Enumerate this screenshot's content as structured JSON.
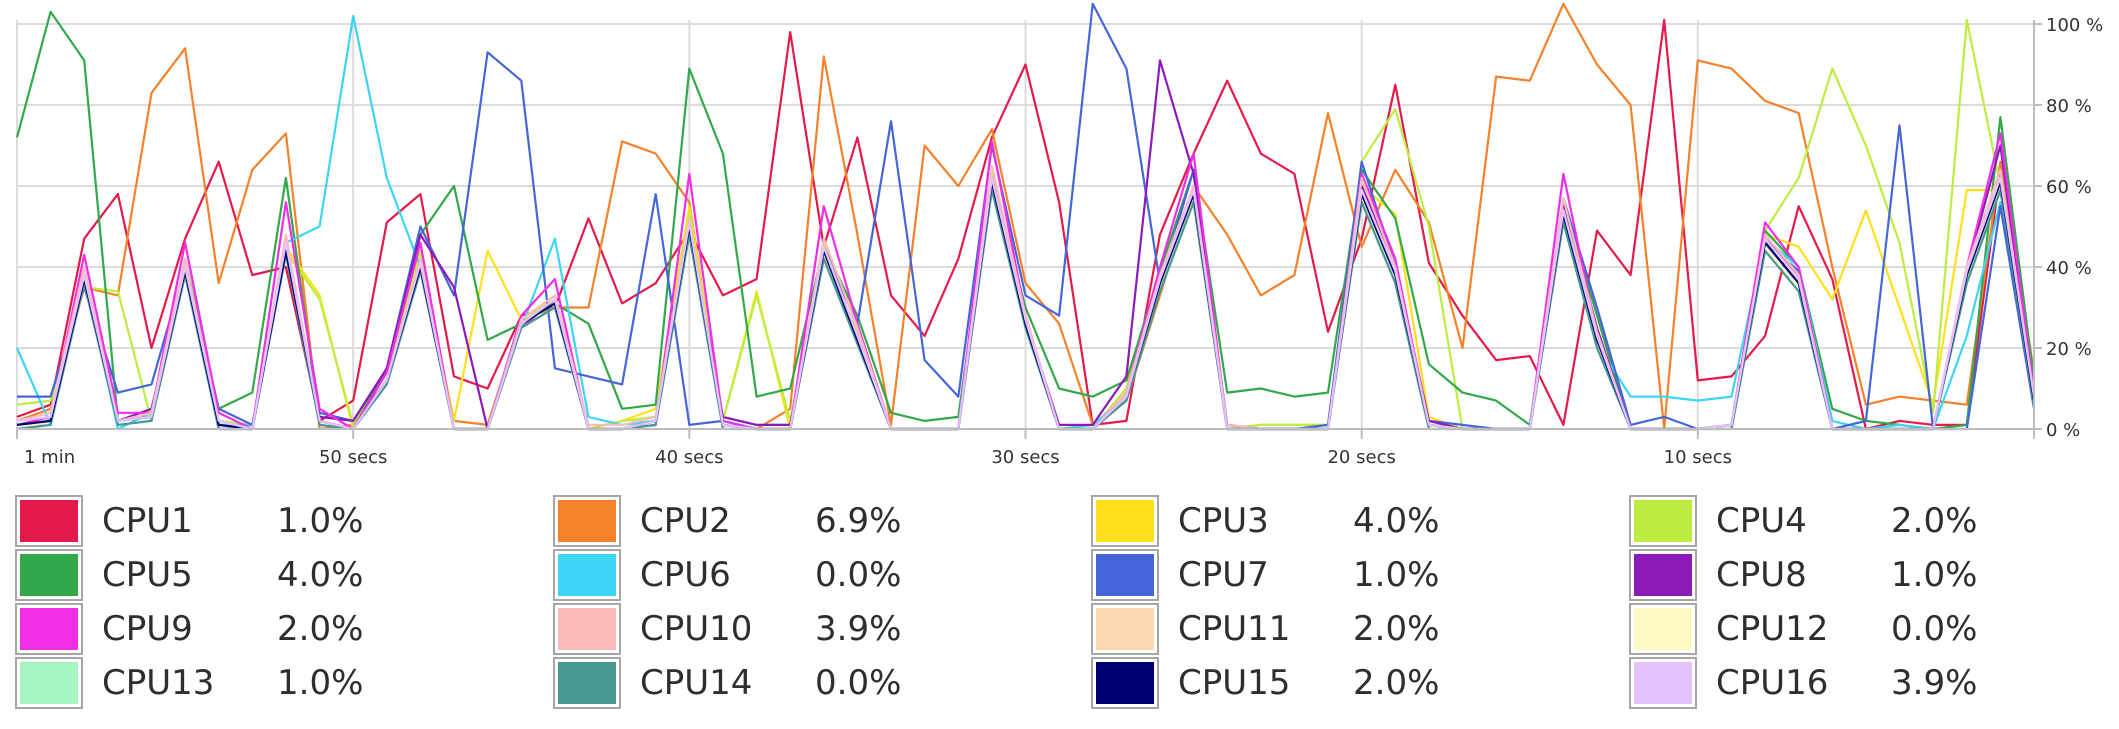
{
  "chart_data": {
    "type": "line",
    "x_unit": "seconds ago",
    "x": [
      60,
      59,
      58,
      57,
      56,
      55,
      54,
      53,
      52,
      51,
      50,
      49,
      48,
      47,
      46,
      45,
      44,
      43,
      42,
      41,
      40,
      39,
      38,
      37,
      36,
      35,
      34,
      33,
      32,
      31,
      30,
      29,
      28,
      27,
      26,
      25,
      24,
      23,
      22,
      21,
      20,
      19,
      18,
      17,
      16,
      15,
      14,
      13,
      12,
      11,
      10,
      9,
      8,
      7,
      6,
      5,
      4,
      3,
      2,
      1,
      0
    ],
    "ylim": [
      0,
      100
    ],
    "xlim": [
      60,
      0
    ],
    "x_tick_labels": [
      {
        "x": 60,
        "label": "1 min"
      },
      {
        "x": 50,
        "label": "50 secs"
      },
      {
        "x": 40,
        "label": "40 secs"
      },
      {
        "x": 30,
        "label": "30 secs"
      },
      {
        "x": 20,
        "label": "20 secs"
      },
      {
        "x": 10,
        "label": "10 secs"
      }
    ],
    "y_tick_labels": [
      {
        "y": 100,
        "label": "100 %"
      },
      {
        "y": 80,
        "label": "80 %"
      },
      {
        "y": 60,
        "label": "60 %"
      },
      {
        "y": 40,
        "label": "40 %"
      },
      {
        "y": 20,
        "label": "20 %"
      },
      {
        "y": 0,
        "label": "0 %"
      }
    ],
    "grid": true,
    "legend_position": "bottom",
    "series": [
      {
        "name": "CPU1",
        "value_label": "1.0%",
        "color": "#e31a4a",
        "values": [
          3,
          6,
          47,
          58,
          20,
          47,
          66,
          38,
          40,
          2,
          7,
          51,
          58,
          13,
          10,
          28,
          30,
          52,
          31,
          36,
          49,
          33,
          37,
          98,
          45,
          72,
          33,
          23,
          42,
          72,
          90,
          56,
          1,
          2,
          48,
          68,
          86,
          68,
          63,
          24,
          47,
          85,
          41,
          28,
          17,
          18,
          1,
          49,
          38,
          101,
          12,
          13,
          23,
          55,
          37,
          0,
          2,
          1,
          1,
          64,
          10
        ]
      },
      {
        "name": "CPU2",
        "value_label": "6.9%",
        "color": "#f5822a",
        "values": [
          2,
          5,
          35,
          33,
          83,
          94,
          36,
          64,
          73,
          0,
          1,
          12,
          42,
          2,
          1,
          27,
          30,
          30,
          71,
          68,
          56,
          1,
          0,
          5,
          92,
          48,
          1,
          70,
          60,
          74,
          36,
          26,
          1,
          7,
          33,
          60,
          48,
          33,
          38,
          78,
          45,
          64,
          51,
          20,
          87,
          86,
          105,
          90,
          80,
          0,
          91,
          89,
          81,
          78,
          40,
          6,
          8,
          7,
          6,
          66,
          14
        ]
      },
      {
        "name": "CPU3",
        "value_label": "4.0%",
        "color": "#ffe01a",
        "values": [
          1,
          3,
          38,
          2,
          3,
          40,
          1,
          1,
          45,
          33,
          0,
          12,
          42,
          2,
          44,
          27,
          31,
          0,
          2,
          5,
          55,
          2,
          34,
          0,
          46,
          26,
          0,
          0,
          0,
          63,
          28,
          0,
          0,
          10,
          40,
          56,
          0,
          1,
          1,
          1,
          60,
          53,
          3,
          0,
          0,
          0,
          55,
          25,
          0,
          0,
          0,
          1,
          48,
          45,
          32,
          54,
          30,
          6,
          59,
          59,
          10
        ]
      },
      {
        "name": "CPU4",
        "value_label": "2.0%",
        "color": "#bded40",
        "values": [
          6,
          7,
          35,
          34,
          2,
          40,
          2,
          1,
          44,
          32,
          1,
          14,
          44,
          0,
          0,
          26,
          33,
          0,
          2,
          3,
          53,
          2,
          33,
          2,
          43,
          24,
          0,
          0,
          0,
          62,
          27,
          0,
          0,
          10,
          38,
          58,
          0,
          1,
          1,
          1,
          66,
          79,
          50,
          0,
          0,
          0,
          55,
          22,
          0,
          0,
          0,
          1,
          49,
          62,
          89,
          70,
          46,
          4,
          101,
          60,
          12
        ]
      },
      {
        "name": "CPU5",
        "value_label": "4.0%",
        "color": "#33a84a",
        "values": [
          72,
          103,
          91,
          2,
          3,
          42,
          5,
          9,
          62,
          2,
          0,
          15,
          48,
          60,
          22,
          26,
          31,
          26,
          5,
          6,
          89,
          68,
          8,
          10,
          45,
          28,
          4,
          2,
          3,
          62,
          30,
          10,
          8,
          12,
          39,
          64,
          9,
          10,
          8,
          9,
          64,
          52,
          16,
          9,
          7,
          1,
          56,
          28,
          0,
          0,
          0,
          1,
          49,
          40,
          5,
          2,
          1,
          0,
          1,
          77,
          12
        ]
      },
      {
        "name": "CPU6",
        "value_label": "0.0%",
        "color": "#3dd4f5",
        "values": [
          20,
          1,
          38,
          0,
          4,
          40,
          1,
          1,
          46,
          50,
          102,
          62,
          40,
          0,
          0,
          25,
          47,
          3,
          1,
          2,
          50,
          3,
          1,
          1,
          44,
          23,
          0,
          0,
          0,
          62,
          27,
          0,
          1,
          8,
          36,
          60,
          0,
          0,
          0,
          0,
          60,
          39,
          1,
          0,
          0,
          0,
          55,
          21,
          8,
          8,
          7,
          8,
          47,
          40,
          2,
          0,
          1,
          0,
          23,
          56,
          6
        ]
      },
      {
        "name": "CPU7",
        "value_label": "1.0%",
        "color": "#4566d8",
        "values": [
          8,
          8,
          35,
          9,
          11,
          40,
          5,
          1,
          44,
          4,
          2,
          15,
          50,
          33,
          93,
          86,
          15,
          13,
          11,
          58,
          1,
          2,
          0,
          0,
          44,
          26,
          76,
          17,
          8,
          70,
          33,
          28,
          105,
          89,
          36,
          64,
          1,
          0,
          0,
          1,
          66,
          40,
          2,
          1,
          0,
          0,
          57,
          30,
          1,
          3,
          0,
          1,
          46,
          39,
          0,
          2,
          75,
          0,
          0,
          55,
          5
        ]
      },
      {
        "name": "CPU8",
        "value_label": "1.0%",
        "color": "#8c1ab8",
        "values": [
          0,
          2,
          38,
          2,
          5,
          40,
          0,
          0,
          44,
          3,
          2,
          15,
          48,
          35,
          0,
          25,
          32,
          0,
          0,
          2,
          50,
          3,
          1,
          1,
          44,
          23,
          0,
          0,
          0,
          62,
          27,
          1,
          1,
          13,
          91,
          63,
          1,
          0,
          0,
          0,
          60,
          40,
          2,
          0,
          0,
          0,
          56,
          25,
          0,
          0,
          0,
          1,
          47,
          38,
          0,
          0,
          0,
          0,
          39,
          70,
          8
        ]
      },
      {
        "name": "CPU9",
        "value_label": "2.0%",
        "color": "#f02ee8",
        "values": [
          1,
          3,
          43,
          4,
          4,
          46,
          4,
          0,
          56,
          5,
          0,
          14,
          46,
          0,
          0,
          28,
          37,
          0,
          0,
          1,
          63,
          2,
          0,
          0,
          55,
          26,
          0,
          0,
          0,
          71,
          28,
          0,
          0,
          9,
          40,
          68,
          0,
          0,
          0,
          0,
          63,
          42,
          1,
          0,
          0,
          0,
          63,
          23,
          0,
          0,
          0,
          1,
          51,
          40,
          0,
          0,
          0,
          0,
          40,
          73,
          9
        ]
      },
      {
        "name": "CPU10",
        "value_label": "3.9%",
        "color": "#fcbcbc",
        "values": [
          2,
          4,
          40,
          2,
          4,
          42,
          2,
          0,
          48,
          2,
          0,
          12,
          42,
          0,
          0,
          27,
          33,
          1,
          1,
          3,
          52,
          1,
          0,
          0,
          47,
          25,
          0,
          0,
          0,
          65,
          28,
          0,
          0,
          9,
          38,
          60,
          1,
          0,
          0,
          0,
          62,
          40,
          1,
          0,
          0,
          0,
          57,
          24,
          0,
          0,
          0,
          1,
          48,
          38,
          0,
          0,
          0,
          0,
          40,
          64,
          8
        ]
      },
      {
        "name": "CPU11",
        "value_label": "2.0%",
        "color": "#fcd8b0",
        "values": [
          1,
          2,
          37,
          2,
          3,
          39,
          1,
          0,
          45,
          2,
          0,
          12,
          40,
          0,
          0,
          26,
          31,
          0,
          0,
          2,
          50,
          1,
          0,
          0,
          44,
          22,
          0,
          0,
          0,
          61,
          26,
          0,
          0,
          8,
          36,
          58,
          0,
          0,
          0,
          0,
          58,
          38,
          1,
          0,
          0,
          0,
          53,
          22,
          0,
          0,
          0,
          1,
          46,
          36,
          0,
          0,
          0,
          0,
          38,
          61,
          7
        ]
      },
      {
        "name": "CPU12",
        "value_label": "0.0%",
        "color": "#fff9c4",
        "values": [
          0,
          2,
          36,
          2,
          3,
          38,
          1,
          0,
          44,
          2,
          0,
          11,
          40,
          0,
          0,
          25,
          30,
          0,
          0,
          2,
          49,
          1,
          0,
          0,
          43,
          22,
          0,
          0,
          0,
          60,
          26,
          0,
          0,
          8,
          35,
          57,
          0,
          0,
          0,
          0,
          57,
          37,
          1,
          0,
          0,
          0,
          52,
          21,
          0,
          0,
          0,
          1,
          45,
          35,
          0,
          0,
          0,
          0,
          37,
          60,
          7
        ]
      },
      {
        "name": "CPU13",
        "value_label": "1.0%",
        "color": "#a8f5c4",
        "values": [
          1,
          2,
          37,
          2,
          3,
          39,
          1,
          0,
          45,
          2,
          0,
          12,
          40,
          0,
          0,
          26,
          31,
          0,
          0,
          2,
          50,
          1,
          0,
          0,
          44,
          22,
          0,
          0,
          0,
          61,
          26,
          0,
          0,
          8,
          36,
          58,
          0,
          0,
          0,
          0,
          58,
          38,
          1,
          0,
          0,
          0,
          53,
          22,
          0,
          0,
          0,
          1,
          46,
          36,
          0,
          0,
          0,
          0,
          38,
          61,
          7
        ]
      },
      {
        "name": "CPU14",
        "value_label": "0.0%",
        "color": "#469990",
        "values": [
          0,
          1,
          36,
          1,
          2,
          38,
          0,
          0,
          43,
          1,
          0,
          11,
          39,
          0,
          0,
          25,
          30,
          0,
          0,
          1,
          48,
          0,
          0,
          0,
          42,
          21,
          0,
          0,
          0,
          59,
          25,
          0,
          0,
          7,
          34,
          56,
          0,
          0,
          0,
          0,
          56,
          36,
          0,
          0,
          0,
          0,
          51,
          20,
          0,
          0,
          0,
          0,
          44,
          34,
          0,
          0,
          0,
          0,
          36,
          59,
          6
        ]
      },
      {
        "name": "CPU15",
        "value_label": "2.0%",
        "color": "#000075",
        "values": [
          1,
          2,
          37,
          2,
          3,
          39,
          1,
          0,
          44,
          2,
          0,
          12,
          40,
          0,
          0,
          26,
          31,
          0,
          0,
          2,
          50,
          1,
          0,
          0,
          44,
          22,
          0,
          0,
          0,
          61,
          26,
          0,
          0,
          8,
          36,
          58,
          0,
          0,
          0,
          0,
          58,
          38,
          1,
          0,
          0,
          0,
          53,
          22,
          0,
          0,
          0,
          1,
          46,
          36,
          0,
          0,
          0,
          0,
          38,
          61,
          7
        ]
      },
      {
        "name": "CPU16",
        "value_label": "3.9%",
        "color": "#e6c2ff",
        "values": [
          2,
          3,
          38,
          2,
          3,
          40,
          2,
          0,
          46,
          2,
          0,
          12,
          41,
          0,
          0,
          26,
          32,
          0,
          0,
          2,
          51,
          1,
          0,
          0,
          45,
          23,
          0,
          0,
          0,
          62,
          27,
          0,
          0,
          8,
          37,
          59,
          0,
          0,
          0,
          0,
          59,
          39,
          1,
          0,
          0,
          0,
          54,
          23,
          0,
          0,
          0,
          1,
          47,
          37,
          0,
          0,
          0,
          0,
          39,
          62,
          8
        ]
      }
    ]
  }
}
